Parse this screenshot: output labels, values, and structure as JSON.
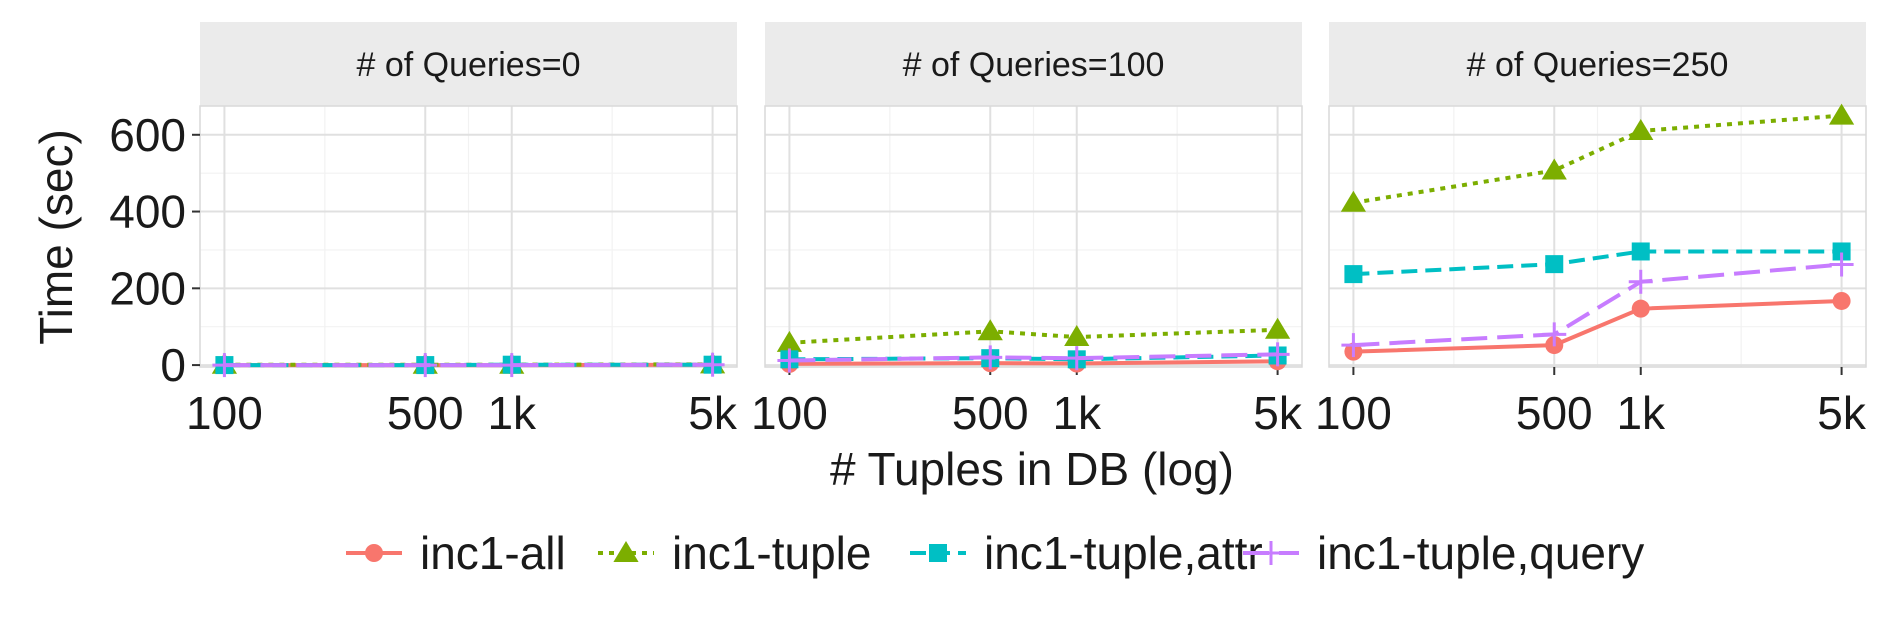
{
  "chart_data": {
    "type": "line",
    "xlabel": "# Tuples in DB (log)",
    "ylabel": "Time (sec)",
    "x_scale": "log",
    "x": [
      100,
      500,
      1000,
      5000
    ],
    "x_tick_labels": [
      "100",
      "500",
      "1k",
      "5k"
    ],
    "y_ticks": [
      0,
      200,
      400,
      600
    ],
    "ylim": [
      -5,
      675
    ],
    "grid": true,
    "legend_position": "bottom",
    "colors": {
      "inc1-all": "#F8766D",
      "inc1-tuple": "#7CAE00",
      "inc1-tuple,attr": "#00BFC4",
      "inc1-tuple,query": "#C77CFF"
    },
    "series_styles": {
      "inc1-all": {
        "marker": "circle",
        "line": "solid"
      },
      "inc1-tuple": {
        "marker": "triangle",
        "line": "dotted"
      },
      "inc1-tuple,attr": {
        "marker": "square",
        "line": "dashed"
      },
      "inc1-tuple,query": {
        "marker": "plus",
        "line": "longdash"
      }
    },
    "panels": [
      {
        "title": "# of Queries=0",
        "series": [
          {
            "name": "inc1-all",
            "values": [
              0,
              0,
              0,
              1
            ]
          },
          {
            "name": "inc1-tuple",
            "values": [
              1,
              1,
              1,
              2
            ]
          },
          {
            "name": "inc1-tuple,attr",
            "values": [
              0,
              0,
              1,
              1
            ]
          },
          {
            "name": "inc1-tuple,query",
            "values": [
              0,
              0,
              0,
              1
            ]
          }
        ]
      },
      {
        "title": "# of Queries=100",
        "series": [
          {
            "name": "inc1-all",
            "values": [
              3,
              5,
              4,
              10
            ]
          },
          {
            "name": "inc1-tuple",
            "values": [
              58,
              88,
              73,
              92
            ]
          },
          {
            "name": "inc1-tuple,attr",
            "values": [
              15,
              18,
              15,
              25
            ]
          },
          {
            "name": "inc1-tuple,query",
            "values": [
              12,
              20,
              18,
              28
            ]
          }
        ]
      },
      {
        "title": "# of Queries=250",
        "series": [
          {
            "name": "inc1-all",
            "values": [
              35,
              52,
              147,
              167
            ]
          },
          {
            "name": "inc1-tuple",
            "values": [
              423,
              507,
              610,
              650
            ]
          },
          {
            "name": "inc1-tuple,attr",
            "values": [
              237,
              263,
              296,
              296
            ]
          },
          {
            "name": "inc1-tuple,query",
            "values": [
              52,
              80,
              217,
              262
            ]
          }
        ]
      }
    ],
    "legend": [
      "inc1-all",
      "inc1-tuple",
      "inc1-tuple,attr",
      "inc1-tuple,query"
    ]
  }
}
